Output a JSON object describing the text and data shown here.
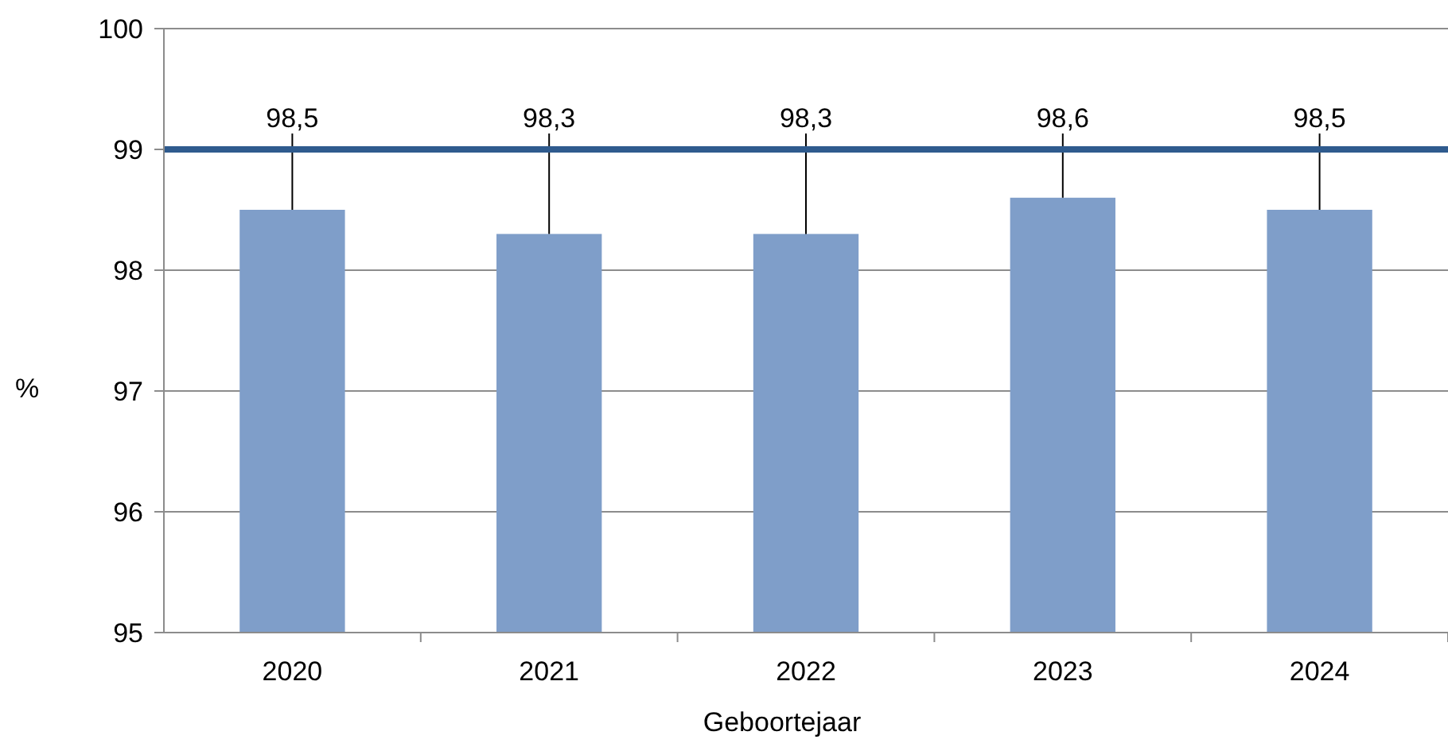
{
  "chart_data": {
    "type": "bar",
    "xlabel": "Geboortejaar",
    "ylabel": "%",
    "categories": [
      "2020",
      "2021",
      "2022",
      "2023",
      "2024"
    ],
    "values": [
      98.5,
      98.3,
      98.3,
      98.6,
      98.5
    ],
    "value_labels": [
      "98,5",
      "98,3",
      "98,3",
      "98,6",
      "98,5"
    ],
    "color": "#7f9ec9",
    "ylim": [
      95,
      100
    ],
    "yticks": [
      95,
      96,
      97,
      98,
      99,
      100
    ],
    "grid": "y",
    "ref_lines": [
      {
        "axis": "y",
        "value": 99,
        "color": "#2f5b8e"
      }
    ]
  }
}
